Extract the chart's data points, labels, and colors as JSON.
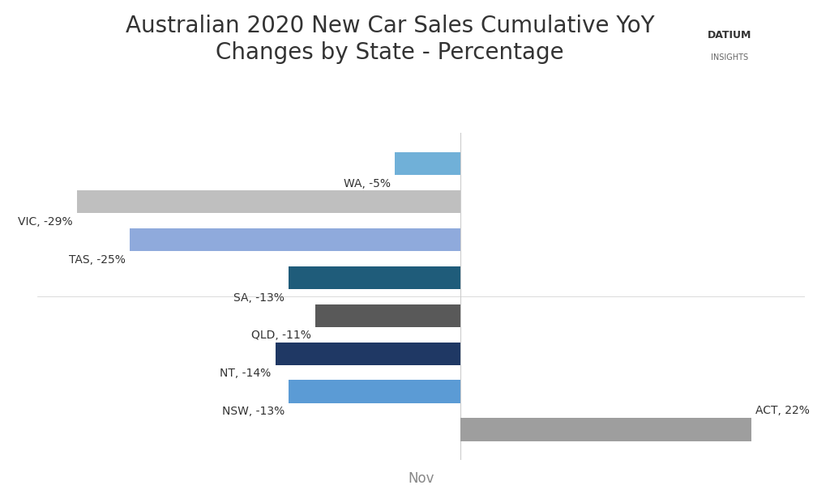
{
  "title": "Australian 2020 New Car Sales Cumulative YoY\nChanges by State - Percentage",
  "states": [
    "ACT",
    "NSW",
    "NT",
    "QLD",
    "SA",
    "TAS",
    "VIC",
    "WA"
  ],
  "values": [
    22,
    -13,
    -14,
    -11,
    -13,
    -25,
    -29,
    -5
  ],
  "labels": [
    "ACT, 22%",
    "NSW, -13%",
    "NT, -14%",
    "QLD, -11%",
    "SA, -13%",
    "TAS, -25%",
    "VIC, -29%",
    "WA, -5%"
  ],
  "colors": [
    "#9E9E9E",
    "#5B9BD5",
    "#1F3864",
    "#595959",
    "#1F5C7A",
    "#8FAADC",
    "#BFBFBF",
    "#70B0D8"
  ],
  "xlabel": "Nov",
  "xlim": [
    -32,
    26
  ],
  "background_color": "#FFFFFF",
  "title_fontsize": 20,
  "label_fontsize": 10,
  "xlabel_fontsize": 12
}
